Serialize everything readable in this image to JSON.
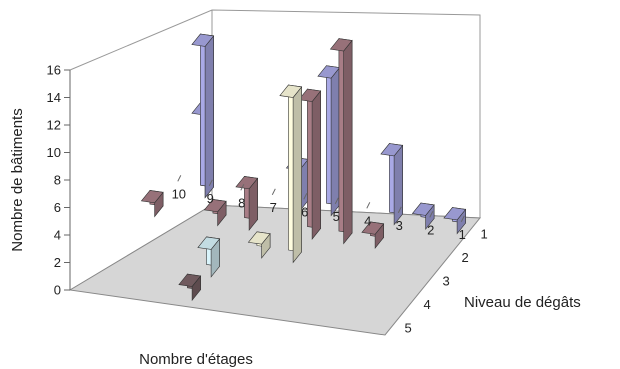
{
  "chart_data": {
    "type": "bar3d",
    "title": "",
    "zlabel": "Nombre de bâtiments",
    "xlabel": "Nombre d'étages",
    "ylabel": "Niveau de dégâts",
    "x_ticks": [
      "10",
      "9",
      "8",
      "7",
      "6",
      "5",
      "4",
      "3",
      "2",
      "1"
    ],
    "y_ticks": [
      "1",
      "2",
      "3",
      "4",
      "5"
    ],
    "z_ticks": [
      "0",
      "2",
      "4",
      "6",
      "8",
      "10",
      "12",
      "14",
      "16"
    ],
    "zlim": [
      0,
      16
    ],
    "grid": false,
    "series_colors": {
      "1": "#a9a9e6",
      "2": "#a87d86",
      "3": "#fffde0",
      "4": "#d9f4fb",
      "5": "#7c6468"
    },
    "bars": [
      {
        "floors": 9,
        "damage": 1,
        "value": 6
      },
      {
        "floors": 9,
        "damage": 1,
        "value": 11
      },
      {
        "floors": 6,
        "damage": 1,
        "value": 3
      },
      {
        "floors": 5,
        "damage": 1,
        "value": 10
      },
      {
        "floors": 3,
        "damage": 1,
        "value": 5
      },
      {
        "floors": 2,
        "damage": 1,
        "value": 1
      },
      {
        "floors": 1,
        "damage": 1,
        "value": 1
      },
      {
        "floors": 10,
        "damage": 2,
        "value": 1
      },
      {
        "floors": 8,
        "damage": 2,
        "value": 1
      },
      {
        "floors": 7,
        "damage": 2,
        "value": 3
      },
      {
        "floors": 5,
        "damage": 2,
        "value": 10
      },
      {
        "floors": 4,
        "damage": 2,
        "value": 14
      },
      {
        "floors": 3,
        "damage": 2,
        "value": 1
      },
      {
        "floors": 6,
        "damage": 3,
        "value": 1
      },
      {
        "floors": 5,
        "damage": 3,
        "value": 12
      },
      {
        "floors": 7,
        "damage": 4,
        "value": 2
      },
      {
        "floors": 7,
        "damage": 5,
        "value": 1
      }
    ]
  }
}
